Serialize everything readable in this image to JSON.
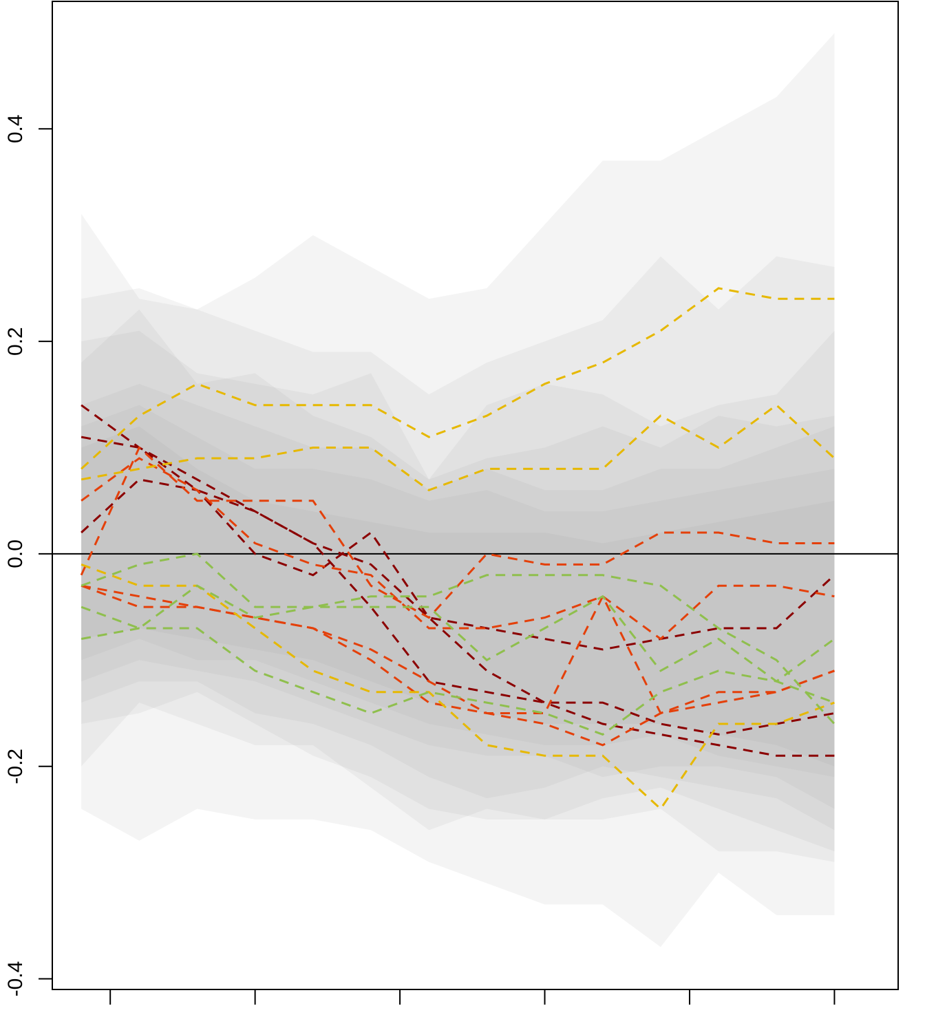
{
  "chart_data": {
    "type": "line",
    "title": "",
    "xlabel": "",
    "ylabel": "",
    "x": [
      1,
      2,
      3,
      4,
      5,
      6,
      7,
      8,
      9,
      10,
      11,
      12,
      13,
      14
    ],
    "xlim": [
      0.5,
      15.1
    ],
    "ylim": [
      -0.41,
      0.52
    ],
    "x_ticks": [
      1.5,
      4.0,
      6.5,
      9.0,
      11.5,
      14.0
    ],
    "y_ticks": [
      {
        "value": -0.4,
        "label": "-0.4"
      },
      {
        "value": -0.2,
        "label": "-0.2"
      },
      {
        "value": 0.0,
        "label": "0.0"
      },
      {
        "value": 0.2,
        "label": "0.2"
      },
      {
        "value": 0.4,
        "label": "0.4"
      }
    ],
    "reference_line": 0.0,
    "grid": false,
    "legend": "none",
    "colors": {
      "dark_red": "#8b0000",
      "orange_red": "#e4400a",
      "gold": "#e6b800",
      "green": "#8fbf4d",
      "band": "#9a9a9a",
      "axis": "#000000"
    },
    "bands": [
      {
        "color": "band",
        "lower": [
          -0.24,
          -0.27,
          -0.24,
          -0.25,
          -0.25,
          -0.26,
          -0.29,
          -0.31,
          -0.33,
          -0.33,
          -0.37,
          -0.3,
          -0.34,
          -0.34
        ],
        "upper": [
          0.32,
          0.24,
          0.23,
          0.26,
          0.3,
          0.27,
          0.24,
          0.25,
          0.31,
          0.37,
          0.37,
          0.4,
          0.43,
          0.49
        ]
      },
      {
        "color": "band",
        "lower": [
          -0.22,
          -0.2,
          -0.19,
          -0.22,
          -0.24,
          -0.26,
          -0.27,
          -0.3,
          -0.3,
          -0.31,
          -0.34,
          -0.31,
          -0.33,
          -0.32
        ]
      },
      {
        "color": "band",
        "lower": [
          -0.2,
          -0.14,
          -0.16,
          -0.18,
          -0.18,
          -0.22,
          -0.26,
          -0.24,
          -0.25,
          -0.25,
          -0.24,
          -0.28,
          -0.28,
          -0.29
        ],
        "upper": [
          0.24,
          0.25,
          0.23,
          0.21,
          0.19,
          0.19,
          0.15,
          0.18,
          0.2,
          0.22,
          0.28,
          0.23,
          0.28,
          0.27
        ]
      },
      {
        "color": "band",
        "lower": [
          -0.16,
          -0.15,
          -0.13,
          -0.16,
          -0.19,
          -0.21,
          -0.24,
          -0.25,
          -0.25,
          -0.23,
          -0.22,
          -0.24,
          -0.26,
          -0.28
        ],
        "upper": [
          0.2,
          0.21,
          0.17,
          0.16,
          0.15,
          0.17,
          0.07,
          0.14,
          0.16,
          0.15,
          0.12,
          0.14,
          0.15,
          0.21
        ]
      },
      {
        "color": "band",
        "lower": [
          -0.14,
          -0.12,
          -0.12,
          -0.15,
          -0.16,
          -0.18,
          -0.21,
          -0.23,
          -0.22,
          -0.2,
          -0.21,
          -0.22,
          -0.23,
          -0.26
        ],
        "upper": [
          0.18,
          0.23,
          0.16,
          0.17,
          0.13,
          0.11,
          0.07,
          0.09,
          0.1,
          0.12,
          0.1,
          0.13,
          0.12,
          0.13
        ]
      },
      {
        "color": "band",
        "lower": [
          -0.12,
          -0.1,
          -0.11,
          -0.12,
          -0.14,
          -0.16,
          -0.18,
          -0.19,
          -0.19,
          -0.21,
          -0.2,
          -0.2,
          -0.21,
          -0.24
        ],
        "upper": [
          0.14,
          0.16,
          0.14,
          0.12,
          0.1,
          0.1,
          0.06,
          0.08,
          0.06,
          0.06,
          0.08,
          0.08,
          0.1,
          0.12
        ]
      },
      {
        "color": "band",
        "lower": [
          -0.1,
          -0.08,
          -0.1,
          -0.1,
          -0.12,
          -0.14,
          -0.16,
          -0.17,
          -0.18,
          -0.18,
          -0.17,
          -0.19,
          -0.2,
          -0.21
        ],
        "upper": [
          0.12,
          0.14,
          0.11,
          0.08,
          0.08,
          0.07,
          0.05,
          0.06,
          0.04,
          0.04,
          0.05,
          0.06,
          0.07,
          0.08
        ]
      },
      {
        "color": "band",
        "lower": [
          -0.08,
          -0.07,
          -0.08,
          -0.09,
          -0.1,
          -0.12,
          -0.14,
          -0.15,
          -0.16,
          -0.16,
          -0.16,
          -0.17,
          -0.18,
          -0.2
        ],
        "upper": [
          0.1,
          0.12,
          0.08,
          0.05,
          0.04,
          0.03,
          0.02,
          0.02,
          0.02,
          0.01,
          0.02,
          0.03,
          0.04,
          0.05
        ]
      }
    ],
    "series": [
      {
        "color": "dark_red",
        "values": [
          0.14,
          0.1,
          0.07,
          0.04,
          0.01,
          -0.01,
          -0.06,
          -0.11,
          -0.14,
          -0.16,
          -0.17,
          -0.18,
          -0.19,
          -0.19
        ]
      },
      {
        "color": "dark_red",
        "values": [
          0.11,
          0.1,
          0.06,
          0.04,
          0.01,
          -0.05,
          -0.12,
          -0.13,
          -0.14,
          -0.14,
          -0.16,
          -0.17,
          -0.16,
          -0.15
        ]
      },
      {
        "color": "dark_red",
        "values": [
          0.02,
          0.07,
          0.06,
          0.0,
          -0.02,
          0.02,
          -0.06,
          -0.07,
          -0.08,
          -0.09,
          -0.08,
          -0.07,
          -0.07,
          -0.02
        ]
      },
      {
        "color": "orange_red",
        "values": [
          0.05,
          0.09,
          0.06,
          0.01,
          -0.01,
          -0.02,
          -0.07,
          -0.07,
          -0.06,
          -0.04,
          -0.08,
          -0.03,
          -0.03,
          -0.04
        ]
      },
      {
        "color": "orange_red",
        "values": [
          -0.02,
          0.1,
          0.05,
          0.05,
          0.05,
          -0.03,
          -0.06,
          0.0,
          -0.01,
          -0.01,
          0.02,
          0.02,
          0.01,
          0.01
        ]
      },
      {
        "color": "orange_red",
        "values": [
          -0.03,
          -0.05,
          -0.05,
          -0.06,
          -0.07,
          -0.09,
          -0.12,
          -0.15,
          -0.16,
          -0.18,
          -0.15,
          -0.13,
          -0.13,
          -0.11
        ]
      },
      {
        "color": "orange_red",
        "values": [
          -0.03,
          -0.04,
          -0.05,
          -0.06,
          -0.07,
          -0.1,
          -0.14,
          -0.15,
          -0.15,
          -0.04,
          -0.15,
          -0.14,
          -0.13,
          -0.11
        ]
      },
      {
        "color": "gold",
        "values": [
          0.08,
          0.13,
          0.16,
          0.14,
          0.14,
          0.14,
          0.11,
          0.13,
          0.16,
          0.18,
          0.21,
          0.25,
          0.24,
          0.24
        ]
      },
      {
        "color": "gold",
        "values": [
          0.07,
          0.08,
          0.09,
          0.09,
          0.1,
          0.1,
          0.06,
          0.08,
          0.08,
          0.08,
          0.13,
          0.1,
          0.14,
          0.09
        ]
      },
      {
        "color": "gold",
        "values": [
          -0.01,
          -0.03,
          -0.03,
          -0.07,
          -0.11,
          -0.13,
          -0.13,
          -0.18,
          -0.19,
          -0.19,
          -0.24,
          -0.16,
          -0.16,
          -0.14
        ]
      },
      {
        "color": "green",
        "values": [
          -0.03,
          -0.01,
          0.0,
          -0.05,
          -0.05,
          -0.05,
          -0.05,
          -0.1,
          -0.07,
          -0.04,
          -0.11,
          -0.08,
          -0.12,
          -0.08
        ]
      },
      {
        "color": "green",
        "values": [
          -0.05,
          -0.07,
          -0.03,
          -0.06,
          -0.05,
          -0.04,
          -0.04,
          -0.02,
          -0.02,
          -0.02,
          -0.03,
          -0.07,
          -0.1,
          -0.16
        ]
      },
      {
        "color": "green",
        "values": [
          -0.08,
          -0.07,
          -0.07,
          -0.11,
          -0.13,
          -0.15,
          -0.13,
          -0.14,
          -0.15,
          -0.17,
          -0.13,
          -0.11,
          -0.12,
          -0.14
        ]
      }
    ]
  }
}
